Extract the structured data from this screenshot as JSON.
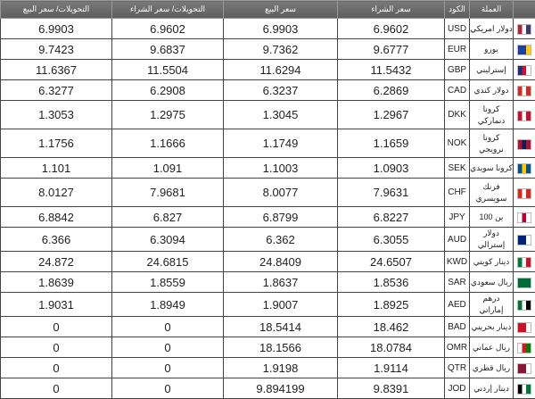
{
  "headers": {
    "flag": "",
    "currency": "العملة",
    "code": "الكود",
    "buy": "سعر الشراء",
    "sell": "سعر البيع",
    "transfer_buy": "التحويلات/ سعر الشراء",
    "transfer_sell": "التحويلات/ سعر البيع"
  },
  "rows": [
    {
      "name": "دولار امريكي",
      "code": "USD",
      "buy": "6.9602",
      "sell": "6.9903",
      "tbuy": "6.9602",
      "tsell": "6.9903",
      "flag": "us-flag-icon",
      "colors": [
        "#b22234",
        "#ffffff",
        "#3c3b6e"
      ]
    },
    {
      "name": "يورو",
      "code": "EUR",
      "buy": "9.6777",
      "sell": "9.7362",
      "tbuy": "9.6837",
      "tsell": "9.7423",
      "flag": "eu-flag-icon",
      "colors": [
        "#1f3fa0",
        "#1f3fa0",
        "#ffcc00"
      ]
    },
    {
      "name": "إسترليني",
      "code": "GBP",
      "buy": "11.5432",
      "sell": "11.6294",
      "tbuy": "11.5504",
      "tsell": "11.6367",
      "flag": "uk-flag-icon",
      "colors": [
        "#1a2f7a",
        "#c8102e",
        "#ffffff"
      ]
    },
    {
      "name": "دولار كندي",
      "code": "CAD",
      "buy": "6.2869",
      "sell": "6.3237",
      "tbuy": "6.2908",
      "tsell": "6.3277",
      "flag": "canada-flag-icon",
      "colors": [
        "#d52b1e",
        "#ffffff",
        "#d52b1e"
      ]
    },
    {
      "name": "كرونا دنماركي",
      "code": "DKK",
      "buy": "1.2967",
      "sell": "1.3045",
      "tbuy": "1.2975",
      "tsell": "1.3053",
      "flag": "denmark-flag-icon",
      "colors": [
        "#c8102e",
        "#ffffff",
        "#c8102e"
      ]
    },
    {
      "name": "كرونا نرويجي",
      "code": "NOK",
      "buy": "1.1659",
      "sell": "1.1749",
      "tbuy": "1.1666",
      "tsell": "1.1756",
      "flag": "norway-flag-icon",
      "colors": [
        "#ba0c2f",
        "#00205b",
        "#ba0c2f"
      ]
    },
    {
      "name": "كرونا سويدي",
      "code": "SEK",
      "buy": "1.0903",
      "sell": "1.1003",
      "tbuy": "1.091",
      "tsell": "1.101",
      "flag": "sweden-flag-icon",
      "colors": [
        "#005293",
        "#fecb00",
        "#005293"
      ]
    },
    {
      "name": "فرنك سويسري",
      "code": "CHF",
      "buy": "7.9631",
      "sell": "8.0077",
      "tbuy": "7.9681",
      "tsell": "8.0127",
      "flag": "switzerland-flag-icon",
      "colors": [
        "#d52b1e",
        "#ffffff",
        "#d52b1e"
      ]
    },
    {
      "name": "ين 100",
      "code": "JPY",
      "buy": "6.8227",
      "sell": "6.8799",
      "tbuy": "6.827",
      "tsell": "6.8842",
      "flag": "japan-flag-icon",
      "colors": [
        "#ffffff",
        "#bc002d",
        "#ffffff"
      ]
    },
    {
      "name": "دولار إسترالي",
      "code": "AUD",
      "buy": "6.3055",
      "sell": "6.362",
      "tbuy": "6.3094",
      "tsell": "6.366",
      "flag": "australia-flag-icon",
      "colors": [
        "#00247d",
        "#00247d",
        "#ffffff"
      ]
    },
    {
      "name": "دينار كويتي",
      "code": "KWD",
      "buy": "24.6507",
      "sell": "24.8409",
      "tbuy": "24.6815",
      "tsell": "24.872",
      "flag": "kuwait-flag-icon",
      "colors": [
        "#007a3d",
        "#ffffff",
        "#ce1126"
      ]
    },
    {
      "name": "ريال سعودي",
      "code": "SAR",
      "buy": "1.8536",
      "sell": "1.8637",
      "tbuy": "1.8559",
      "tsell": "1.8639",
      "flag": "saudi-flag-icon",
      "colors": [
        "#006c35",
        "#006c35",
        "#006c35"
      ]
    },
    {
      "name": "درهم إماراتي",
      "code": "AED",
      "buy": "1.8925",
      "sell": "1.9007",
      "tbuy": "1.8949",
      "tsell": "1.9031",
      "flag": "uae-flag-icon",
      "colors": [
        "#00732f",
        "#ffffff",
        "#000000"
      ]
    },
    {
      "name": "دينار بحريني",
      "code": "BAD",
      "buy": "18.462",
      "sell": "18.5414",
      "tbuy": "0",
      "tsell": "0",
      "flag": "bahrain-flag-icon",
      "colors": [
        "#ce1126",
        "#ce1126",
        "#ffffff"
      ]
    },
    {
      "name": "ريال عماني",
      "code": "OMR",
      "buy": "18.0784",
      "sell": "18.1566",
      "tbuy": "0",
      "tsell": "0",
      "flag": "oman-flag-icon",
      "colors": [
        "#ffffff",
        "#db161b",
        "#008000"
      ]
    },
    {
      "name": "ريال قطري",
      "code": "QTR",
      "buy": "1.9114",
      "sell": "1.9198",
      "tbuy": "0",
      "tsell": "0",
      "flag": "qatar-flag-icon",
      "colors": [
        "#8a1538",
        "#8a1538",
        "#ffffff"
      ]
    },
    {
      "name": "دينار إردني",
      "code": "JOD",
      "buy": "9.8391",
      "sell": "9.894199",
      "tbuy": "0",
      "tsell": "0",
      "flag": "jordan-flag-icon",
      "colors": [
        "#000000",
        "#ffffff",
        "#007a3d"
      ]
    }
  ]
}
